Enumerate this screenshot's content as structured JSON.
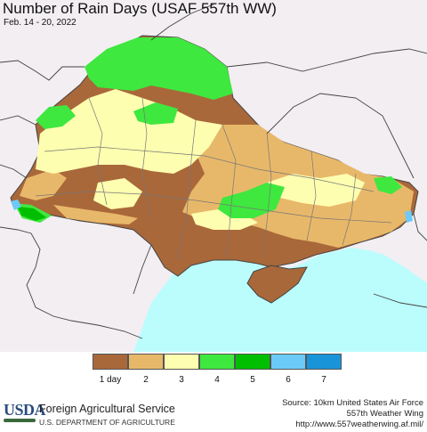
{
  "header": {
    "title": "Number of Rain Days (USAF 557th WW)",
    "date_range": "Feb. 14 - 20, 2022"
  },
  "legend": {
    "items": [
      {
        "label": "1 day",
        "color": "#a9683a"
      },
      {
        "label": "2",
        "color": "#e8b86a"
      },
      {
        "label": "3",
        "color": "#fefeb0"
      },
      {
        "label": "4",
        "color": "#3ee83e"
      },
      {
        "label": "5",
        "color": "#00bf00"
      },
      {
        "label": "6",
        "color": "#6ccaf8"
      },
      {
        "label": "7",
        "color": "#1a94d8"
      }
    ]
  },
  "colors": {
    "sea": "#bbfdfd",
    "outside": "#f2eef2",
    "border": "#444444"
  },
  "footer": {
    "logo_text": "USDA",
    "agency": "Foreign Agricultural Service",
    "department": "U.S. DEPARTMENT OF AGRICULTURE",
    "source_line1": "Source: 10km United States Air Force",
    "source_line2": "557th Weather Wing",
    "source_line3": "http://www.557weatherwing.af.mil/"
  }
}
